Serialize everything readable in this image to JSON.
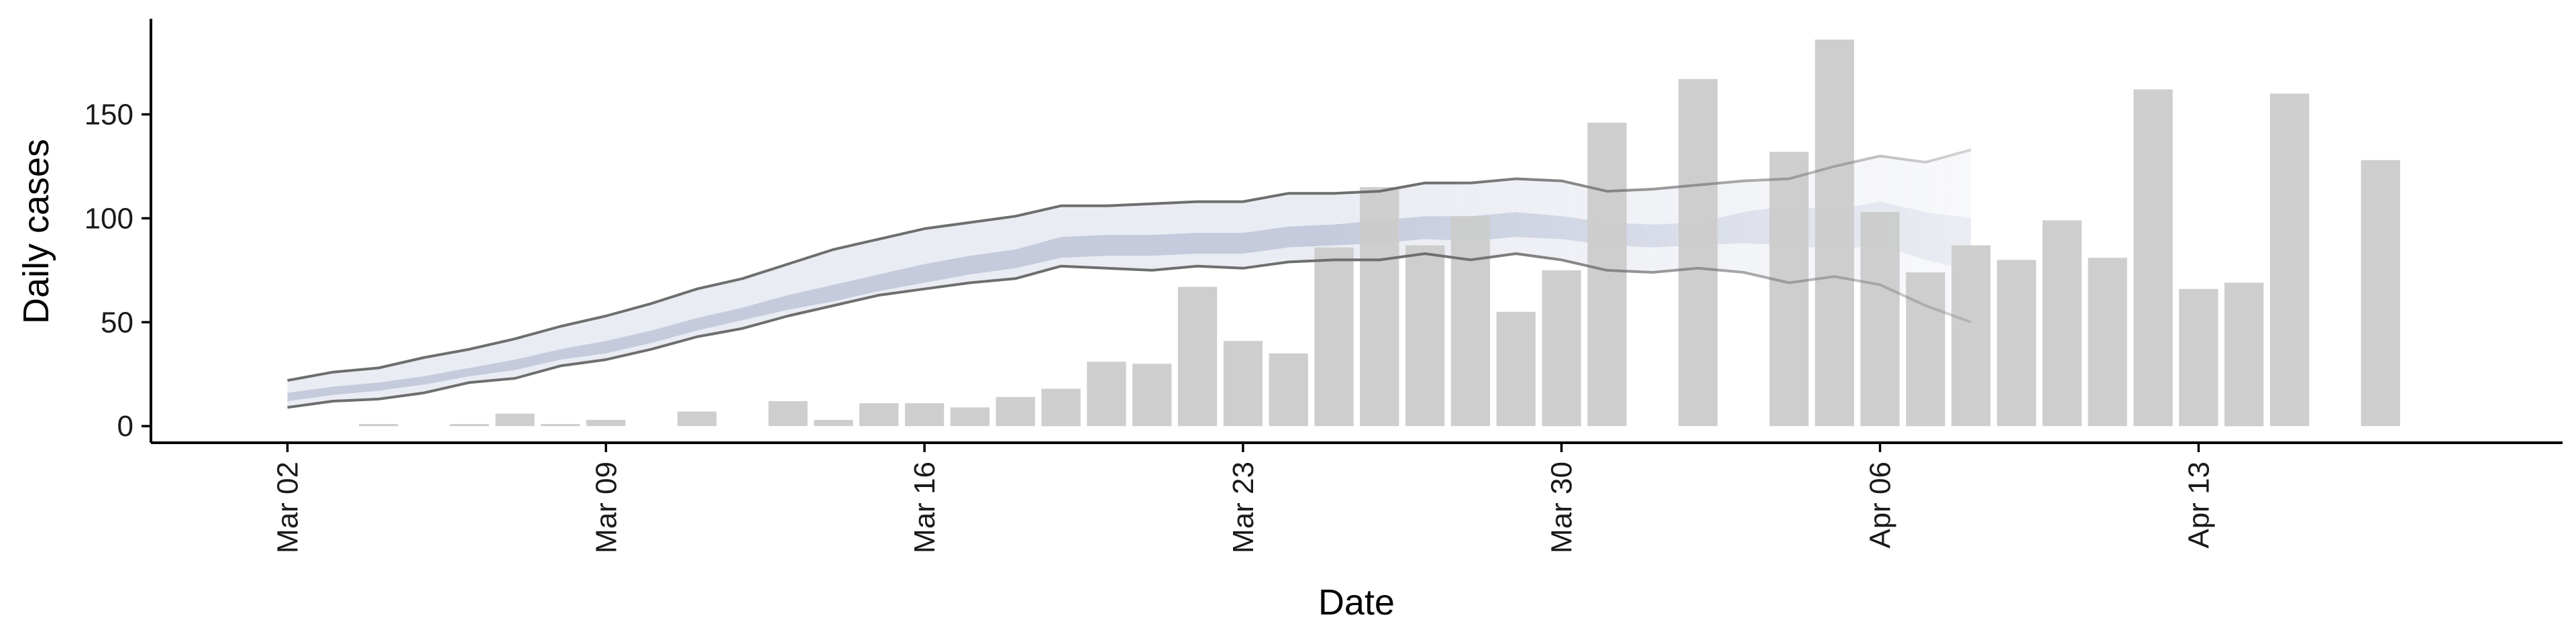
{
  "chart_data": {
    "type": "bar",
    "xlabel": "Date",
    "ylabel": "Daily cases",
    "x_range": [
      "2020-02-28",
      "2020-04-21"
    ],
    "ylim": [
      -8,
      196
    ],
    "y_ticks": [
      0,
      50,
      100,
      150
    ],
    "x_ticks": [
      {
        "date": "2020-03-02",
        "label": "Mar 02"
      },
      {
        "date": "2020-03-09",
        "label": "Mar 09"
      },
      {
        "date": "2020-03-16",
        "label": "Mar 16"
      },
      {
        "date": "2020-03-23",
        "label": "Mar 23"
      },
      {
        "date": "2020-03-30",
        "label": "Mar 30"
      },
      {
        "date": "2020-04-06",
        "label": "Apr 06"
      },
      {
        "date": "2020-04-13",
        "label": "Apr 13"
      }
    ],
    "grid": false,
    "legend": "none",
    "bar_color": "#cccccc",
    "band_outer_color": "#c9cde0",
    "band_inner_color": "#a6aecb",
    "ci_line_color": "#6e6e6e",
    "bars": {
      "x": [
        "2020-03-04",
        "2020-03-06",
        "2020-03-07",
        "2020-03-08",
        "2020-03-09",
        "2020-03-11",
        "2020-03-13",
        "2020-03-14",
        "2020-03-15",
        "2020-03-16",
        "2020-03-17",
        "2020-03-18",
        "2020-03-19",
        "2020-03-20",
        "2020-03-21",
        "2020-03-22",
        "2020-03-23",
        "2020-03-24",
        "2020-03-25",
        "2020-03-26",
        "2020-03-27",
        "2020-03-28",
        "2020-03-29",
        "2020-03-30",
        "2020-03-31",
        "2020-04-02",
        "2020-04-04",
        "2020-04-05",
        "2020-04-06",
        "2020-04-07",
        "2020-04-08",
        "2020-04-09",
        "2020-04-10",
        "2020-04-11",
        "2020-04-12",
        "2020-04-13",
        "2020-04-14",
        "2020-04-15",
        "2020-04-17"
      ],
      "values": [
        1,
        1,
        6,
        1,
        3,
        7,
        12,
        3,
        11,
        11,
        9,
        14,
        18,
        31,
        30,
        67,
        41,
        35,
        86,
        115,
        87,
        101,
        55,
        75,
        146,
        167,
        132,
        186,
        103,
        74,
        87,
        80,
        99,
        81,
        162,
        66,
        69,
        160,
        128
      ]
    },
    "estimate": {
      "x": [
        "2020-03-02",
        "2020-03-03",
        "2020-03-04",
        "2020-03-05",
        "2020-03-06",
        "2020-03-07",
        "2020-03-08",
        "2020-03-09",
        "2020-03-10",
        "2020-03-11",
        "2020-03-12",
        "2020-03-13",
        "2020-03-14",
        "2020-03-15",
        "2020-03-16",
        "2020-03-17",
        "2020-03-18",
        "2020-03-19",
        "2020-03-20",
        "2020-03-21",
        "2020-03-22",
        "2020-03-23",
        "2020-03-24",
        "2020-03-25",
        "2020-03-26",
        "2020-03-27",
        "2020-03-28",
        "2020-03-29",
        "2020-03-30",
        "2020-03-31",
        "2020-04-01",
        "2020-04-02",
        "2020-04-03",
        "2020-04-04",
        "2020-04-05",
        "2020-04-06",
        "2020-04-07",
        "2020-04-08"
      ],
      "ci90_upper": [
        22,
        26,
        28,
        33,
        37,
        42,
        48,
        53,
        59,
        66,
        71,
        78,
        85,
        90,
        95,
        98,
        101,
        106,
        106,
        107,
        108,
        108,
        112,
        112,
        113,
        117,
        117,
        119,
        118,
        113,
        114,
        116,
        118,
        119,
        125,
        130,
        127,
        133
      ],
      "ci90_lower": [
        9,
        12,
        13,
        16,
        21,
        23,
        29,
        32,
        37,
        43,
        47,
        53,
        58,
        63,
        66,
        69,
        71,
        77,
        76,
        75,
        77,
        76,
        79,
        80,
        80,
        83,
        80,
        83,
        80,
        75,
        74,
        76,
        74,
        69,
        72,
        68,
        58,
        50
      ],
      "ci50_upper": [
        16,
        19,
        21,
        24,
        28,
        32,
        37,
        41,
        46,
        52,
        57,
        63,
        68,
        73,
        78,
        82,
        85,
        91,
        92,
        92,
        93,
        93,
        96,
        97,
        99,
        101,
        101,
        103,
        101,
        98,
        97,
        98,
        103,
        106,
        104,
        108,
        103,
        100
      ],
      "ci50_lower": [
        12,
        15,
        17,
        20,
        24,
        27,
        32,
        35,
        40,
        46,
        51,
        56,
        60,
        65,
        69,
        73,
        76,
        81,
        82,
        82,
        83,
        83,
        86,
        87,
        88,
        90,
        89,
        91,
        90,
        87,
        86,
        87,
        88,
        87,
        85,
        87,
        80,
        75
      ]
    }
  }
}
